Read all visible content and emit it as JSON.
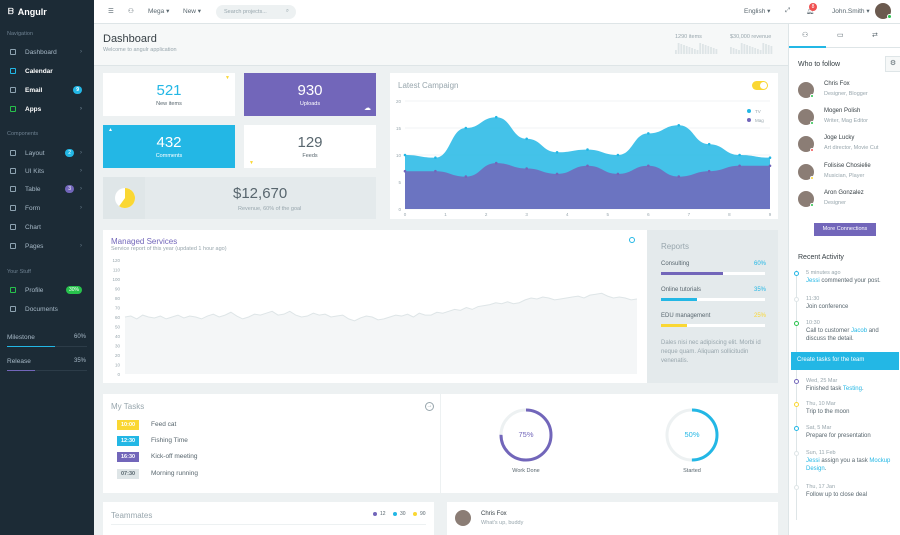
{
  "brand": {
    "name": "Angulr"
  },
  "topbar": {
    "mega": "Mega ▾",
    "new": "New ▾",
    "search_placeholder": "Search projects...",
    "language": "English ▾",
    "notif_count": "8",
    "user": "John.Smith ▾"
  },
  "sidebar": {
    "h_nav": "Navigation",
    "h_comp": "Components",
    "h_stuff": "Your Stuff",
    "nav": [
      {
        "label": "Dashboard"
      },
      {
        "label": "Calendar"
      },
      {
        "label": "Email",
        "badge": "9"
      },
      {
        "label": "Apps"
      }
    ],
    "comp": [
      {
        "label": "Layout",
        "badge": "2"
      },
      {
        "label": "UI Kits"
      },
      {
        "label": "Table",
        "badge": "3"
      },
      {
        "label": "Form"
      },
      {
        "label": "Chart"
      },
      {
        "label": "Pages"
      }
    ],
    "stuff": [
      {
        "label": "Profile",
        "badge": "30%"
      },
      {
        "label": "Documents"
      }
    ],
    "milestone": {
      "label": "Milestone",
      "value": "60%",
      "fill": 0.6
    },
    "release": {
      "label": "Release",
      "value": "35%",
      "fill": 0.35
    }
  },
  "header": {
    "title": "Dashboard",
    "subtitle": "Welcome to angulr application",
    "items_label": "1290 items",
    "revenue_label": "$30,000 revenue"
  },
  "stats": [
    {
      "value": "521",
      "label": "New items"
    },
    {
      "value": "930",
      "label": "Uploads"
    },
    {
      "value": "432",
      "label": "Comments"
    },
    {
      "value": "129",
      "label": "Feeds"
    }
  ],
  "revenue": {
    "value": "$12,670",
    "label": "Revenue, 60% of the goal",
    "goal_fraction": 0.6
  },
  "campaign": {
    "title": "Latest Campaign",
    "legend": [
      "TV",
      "Mag"
    ],
    "yticks": [
      "0",
      "5",
      "10",
      "15",
      "20"
    ],
    "xticks": [
      "0",
      "1",
      "2",
      "3",
      "4",
      "5",
      "6",
      "7",
      "8",
      "9"
    ],
    "ymax": 20,
    "series_tv": [
      10,
      9.5,
      15,
      17,
      13,
      10.5,
      11,
      10,
      14,
      15.5,
      12,
      10,
      9.5
    ],
    "series_mag": [
      7,
      7,
      6,
      8.5,
      7.5,
      6.5,
      8,
      6.5,
      8,
      6,
      7,
      8,
      8
    ]
  },
  "managed": {
    "title": "Managed Services",
    "subtitle": "Service report of this year (updated 1 hour ago)",
    "yticks": [
      "0",
      "10",
      "20",
      "30",
      "40",
      "50",
      "60",
      "70",
      "80",
      "90",
      "100",
      "110",
      "120"
    ],
    "values": [
      60,
      61,
      58,
      62,
      60,
      59,
      61,
      58,
      60,
      62,
      59,
      61,
      60,
      58,
      61,
      63,
      60,
      62,
      65,
      61,
      58,
      60,
      63,
      62,
      64,
      66,
      62,
      63,
      66,
      62,
      60,
      61,
      64,
      62,
      63,
      60,
      61,
      62,
      58,
      56,
      59,
      61,
      60,
      57,
      58,
      60,
      62,
      61,
      63,
      60,
      64,
      62,
      62,
      65,
      64,
      66,
      68,
      67,
      70,
      68,
      71,
      72,
      73,
      75,
      74,
      76,
      74,
      75,
      78,
      80,
      79,
      81,
      80,
      78,
      79,
      80,
      81,
      82,
      80,
      83,
      84,
      85,
      82,
      80,
      81,
      80,
      78,
      79
    ]
  },
  "reports": {
    "title": "Reports",
    "items": [
      {
        "label": "Consulting",
        "value": "60%",
        "fill": 0.6,
        "color": "#7266ba"
      },
      {
        "label": "Online tutorials",
        "value": "35%",
        "fill": 0.35,
        "color": "#23b7e5"
      },
      {
        "label": "EDU management",
        "value": "25%",
        "fill": 0.25,
        "color": "#fad733"
      }
    ],
    "note": "Dales nisi nec adipiscing elit. Morbi id neque quam. Aliquam sollicitudin venenatis."
  },
  "tasks": {
    "title": "My Tasks",
    "items": [
      {
        "time": "10:00",
        "label": "Feed cat",
        "color": "#fad733"
      },
      {
        "time": "12:30",
        "label": "Fishing Time",
        "color": "#23b7e5"
      },
      {
        "time": "16:30",
        "label": "Kick-off meeting",
        "color": "#7266ba"
      },
      {
        "time": "07:30",
        "label": "Morning running",
        "color": "#dee5e7"
      }
    ]
  },
  "rings": [
    {
      "value": "75%",
      "label": "Work Done",
      "fraction": 0.75,
      "color": "#7266ba"
    },
    {
      "value": "50%",
      "label": "Started",
      "fraction": 0.5,
      "color": "#23b7e5"
    }
  ],
  "teammates": {
    "title": "Teammates",
    "legend": [
      {
        "value": "12",
        "color": "#7266ba"
      },
      {
        "value": "30",
        "color": "#23b7e5"
      },
      {
        "value": "90",
        "color": "#fad733"
      }
    ]
  },
  "chat": {
    "name": "Chris Fox",
    "msg": "What's up, buddy"
  },
  "right": {
    "follow_title": "Who to follow",
    "users": [
      {
        "name": "Chris Fox",
        "role": "Designer, Blogger",
        "status": "#27c24c"
      },
      {
        "name": "Mogen Polish",
        "role": "Writer, Mag Editor",
        "status": "#27c24c"
      },
      {
        "name": "Joge Lucky",
        "role": "Art director, Movie Cut",
        "status": "#f05050"
      },
      {
        "name": "Folisise Chosielie",
        "role": "Musician, Player",
        "status": "#fad733"
      },
      {
        "name": "Aron Gonzalez",
        "role": "Designer",
        "status": "#27c24c"
      }
    ],
    "more_btn": "More Connections",
    "activity_title": "Recent Activity",
    "activity": [
      {
        "time": "5 minutes ago",
        "pre": "",
        "who": "Jessi",
        "text": " commented your post."
      },
      {
        "time": "11:30",
        "pre": "Join conference",
        "who": "",
        "text": ""
      },
      {
        "time": "10:30",
        "pre": "Call to customer ",
        "who": "Jacob",
        "text": " and discuss the detail."
      }
    ],
    "highlight": "Create tasks for the team",
    "activity2": [
      {
        "time": "Wed, 25 Mar",
        "pre": "Finished task ",
        "who": "Testing",
        "text": "."
      },
      {
        "time": "Thu, 10 Mar",
        "pre": "Trip to the moon",
        "who": "",
        "text": ""
      },
      {
        "time": "Sat, 5 Mar",
        "pre": "Prepare for presentation",
        "who": "",
        "text": ""
      },
      {
        "time": "Sun, 11 Feb",
        "pre": "",
        "who": "Jessi",
        "text": " assign you a task ",
        "who2": "Mockup Design",
        "end": "."
      },
      {
        "time": "Thu, 17 Jan",
        "pre": "Follow up to close deal",
        "who": "",
        "text": ""
      }
    ]
  }
}
